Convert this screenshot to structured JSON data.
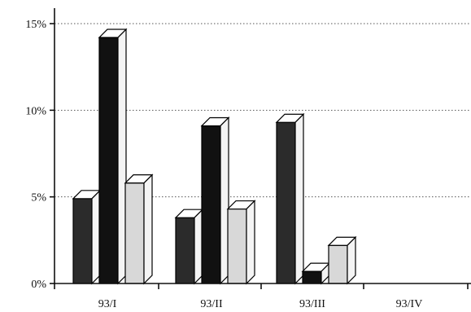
{
  "chart_data": {
    "type": "bar",
    "style": "3d",
    "title": "",
    "xlabel": "",
    "ylabel": "",
    "categories": [
      "93/I",
      "93/II",
      "93/III",
      "93/IV"
    ],
    "y_ticks": [
      {
        "value": 0,
        "label": "0%"
      },
      {
        "value": 5,
        "label": "5%"
      },
      {
        "value": 10,
        "label": "10%"
      },
      {
        "value": 15,
        "label": "15%"
      }
    ],
    "ylim": [
      0,
      15
    ],
    "grid": true,
    "legend": "none",
    "series": [
      {
        "color": "#2b2b2b",
        "values": [
          4.9,
          3.8,
          9.3,
          null
        ]
      },
      {
        "color": "#111111",
        "values": [
          14.2,
          9.1,
          0.7,
          null
        ]
      },
      {
        "color": "#d8d8d8",
        "values": [
          5.8,
          4.3,
          2.2,
          null
        ]
      }
    ]
  }
}
